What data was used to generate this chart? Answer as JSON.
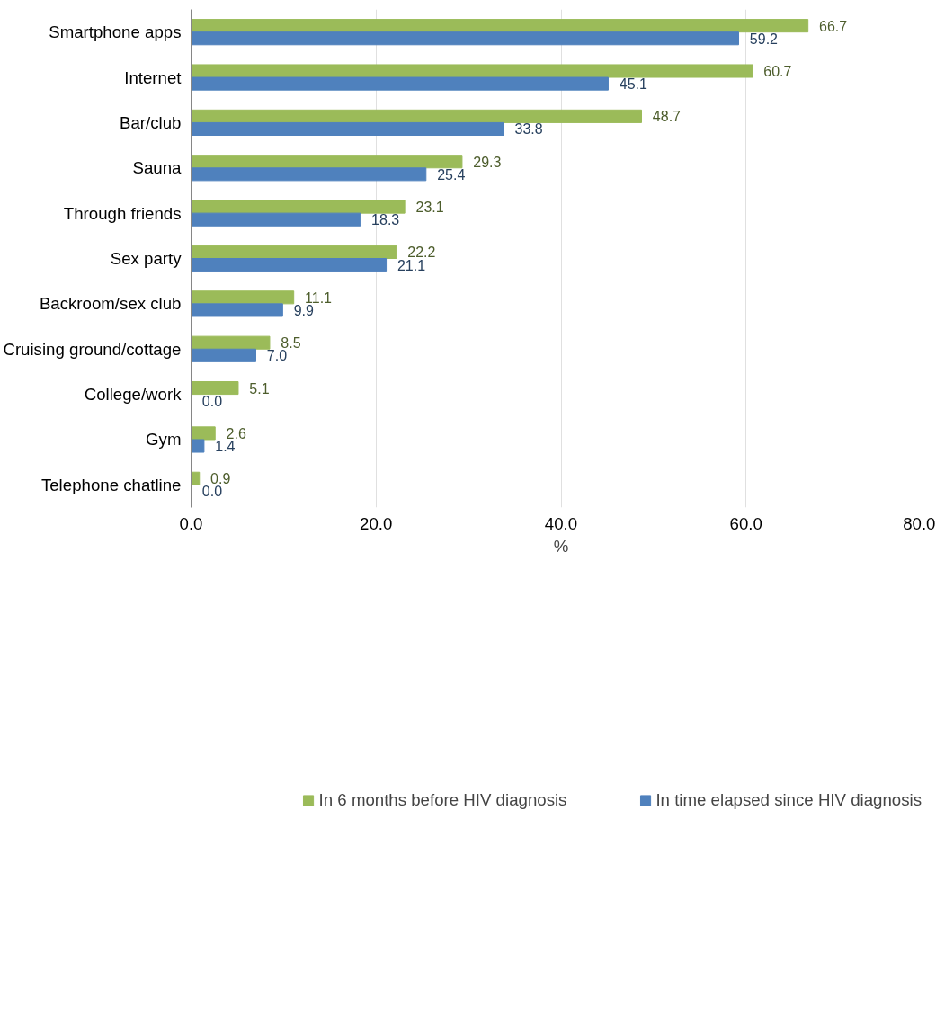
{
  "chart_data": {
    "type": "bar",
    "orientation": "horizontal",
    "xlabel": "%",
    "categories": [
      "Smartphone apps",
      "Internet",
      "Bar/club",
      "Sauna",
      "Through friends",
      "Sex party",
      "Backroom/sex club",
      "Cruising ground/cottage",
      "College/work",
      "Gym",
      "Telephone chatline"
    ],
    "series": [
      {
        "name": "In 6 months before HIV diagnosis",
        "color": "#9bbb59",
        "values": [
          66.7,
          60.7,
          48.7,
          29.3,
          23.1,
          22.2,
          11.1,
          8.5,
          5.1,
          2.6,
          0.9
        ],
        "value_labels": [
          "66.7",
          "60.7",
          "48.7",
          "29.3",
          "23.1",
          "22.2",
          "11.1",
          "8.5",
          "5.1",
          "2.6",
          "0.9"
        ]
      },
      {
        "name": "In time elapsed since HIV diagnosis",
        "color": "#4f81bd",
        "values": [
          59.2,
          45.1,
          33.8,
          25.4,
          18.3,
          21.1,
          9.9,
          7.0,
          0.0,
          1.4,
          0.0
        ],
        "value_labels": [
          "59.2",
          "45.1",
          "33.8",
          "25.4",
          "18.3",
          "21.1",
          "9.9",
          "7.0",
          "0.0",
          "1.4",
          "0.0"
        ]
      }
    ],
    "xlim": [
      0,
      80
    ],
    "xticks": [
      {
        "value": 0,
        "label": "0.0"
      },
      {
        "value": 20,
        "label": "20.0"
      },
      {
        "value": 40,
        "label": "40.0"
      },
      {
        "value": 60,
        "label": "60.0"
      },
      {
        "value": 80,
        "label": "80.0"
      }
    ],
    "grid": "x",
    "legend": "bottom"
  }
}
